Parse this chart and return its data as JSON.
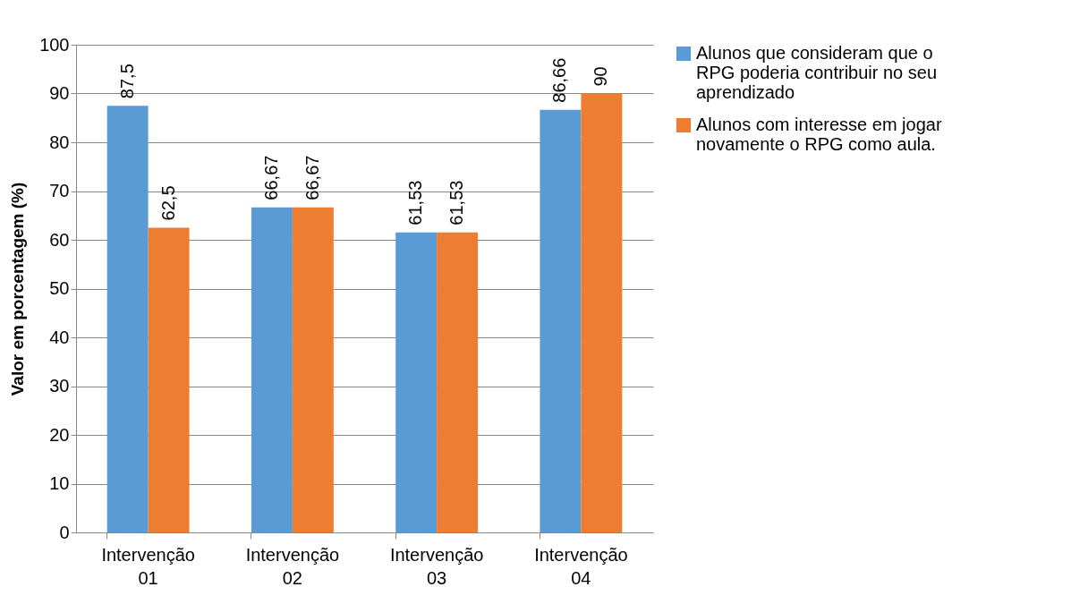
{
  "chart_data": {
    "type": "bar",
    "ylabel": "Valor em porcentagem (%)",
    "categories": [
      "Intervenção 01",
      "Intervenção 02",
      "Intervenção 03",
      "Intervenção 04"
    ],
    "series": [
      {
        "name": "Alunos que consideram que o RPG poderia contribuir no seu aprendizado",
        "color": "#5b9bd5",
        "values": [
          87.5,
          66.67,
          61.53,
          86.66
        ],
        "value_labels": [
          "87,5",
          "66,67",
          "61,53",
          "86,66"
        ]
      },
      {
        "name": "Alunos com interesse em jogar novamente o RPG como aula.",
        "color": "#ed7d31",
        "values": [
          62.5,
          66.67,
          61.53,
          90
        ],
        "value_labels": [
          "62,5",
          "66,67",
          "61,53",
          "90"
        ]
      }
    ],
    "ylim": [
      0,
      100
    ],
    "yticks": [
      0,
      10,
      20,
      30,
      40,
      50,
      60,
      70,
      80,
      90,
      100
    ],
    "grid": "y",
    "legend": "right"
  }
}
